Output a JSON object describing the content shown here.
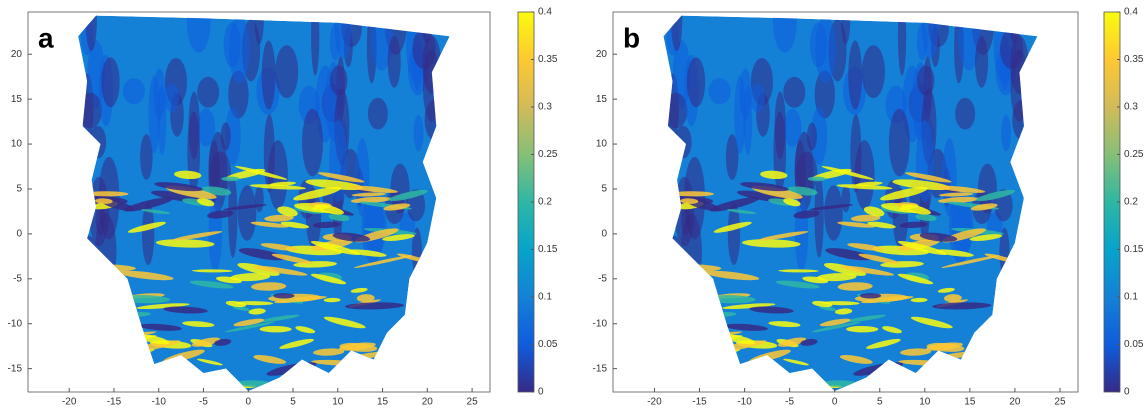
{
  "chart_data": [
    {
      "type": "surface",
      "panel_label": "a",
      "xlim": [
        -24.6,
        27
      ],
      "ylim": [
        -17.6,
        24.7
      ],
      "xticks": [
        -20,
        -15,
        -10,
        -5,
        0,
        5,
        10,
        15,
        20,
        25
      ],
      "yticks": [
        -15,
        -10,
        -5,
        0,
        5,
        10,
        15,
        20
      ],
      "clim": [
        0,
        0.4
      ],
      "cticks": [
        0,
        0.05,
        0.1,
        0.15,
        0.2,
        0.25,
        0.3,
        0.35,
        0.4
      ],
      "colormap": [
        "#352a87",
        "#0f5cdd",
        "#1481d6",
        "#06a4ca",
        "#2eb7a4",
        "#87bf77",
        "#d1bb59",
        "#fec832",
        "#f9fb0e"
      ]
    },
    {
      "type": "surface",
      "panel_label": "b",
      "xlim": [
        -24.6,
        27
      ],
      "ylim": [
        -17.6,
        24.7
      ],
      "xticks": [
        -20,
        -15,
        -10,
        -5,
        0,
        5,
        10,
        15,
        20,
        25
      ],
      "yticks": [
        -15,
        -10,
        -5,
        0,
        5,
        10,
        15,
        20
      ],
      "clim": [
        0,
        0.4
      ],
      "cticks": [
        0,
        0.05,
        0.1,
        0.15,
        0.2,
        0.25,
        0.3,
        0.35,
        0.4
      ],
      "colormap": [
        "#352a87",
        "#0f5cdd",
        "#1481d6",
        "#06a4ca",
        "#2eb7a4",
        "#87bf77",
        "#d1bb59",
        "#fec832",
        "#f9fb0e"
      ]
    }
  ]
}
